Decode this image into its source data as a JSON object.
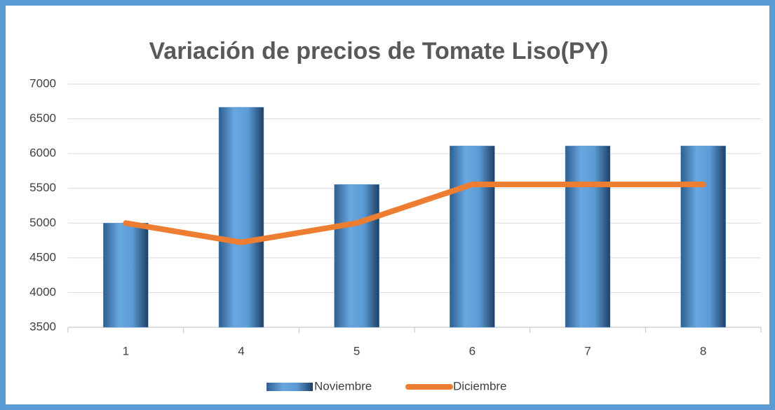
{
  "chart_data": {
    "type": "bar",
    "title": "Variación de precios de Tomate Liso(PY)",
    "categories": [
      "1",
      "4",
      "5",
      "6",
      "7",
      "8"
    ],
    "series": [
      {
        "name": "Noviembre",
        "type": "bar",
        "color": "#5b9bd5",
        "values": [
          5000,
          6667,
          5556,
          6111,
          6111,
          6111
        ]
      },
      {
        "name": "Diciembre",
        "type": "line",
        "color": "#ed7d31",
        "values": [
          5000,
          4722,
          5000,
          5556,
          5556,
          5556
        ]
      }
    ],
    "ylim": [
      3500,
      7000
    ],
    "yticks": [
      3500,
      4000,
      4500,
      5000,
      5500,
      6000,
      6500,
      7000
    ],
    "grid": true,
    "legend": "bottom"
  }
}
